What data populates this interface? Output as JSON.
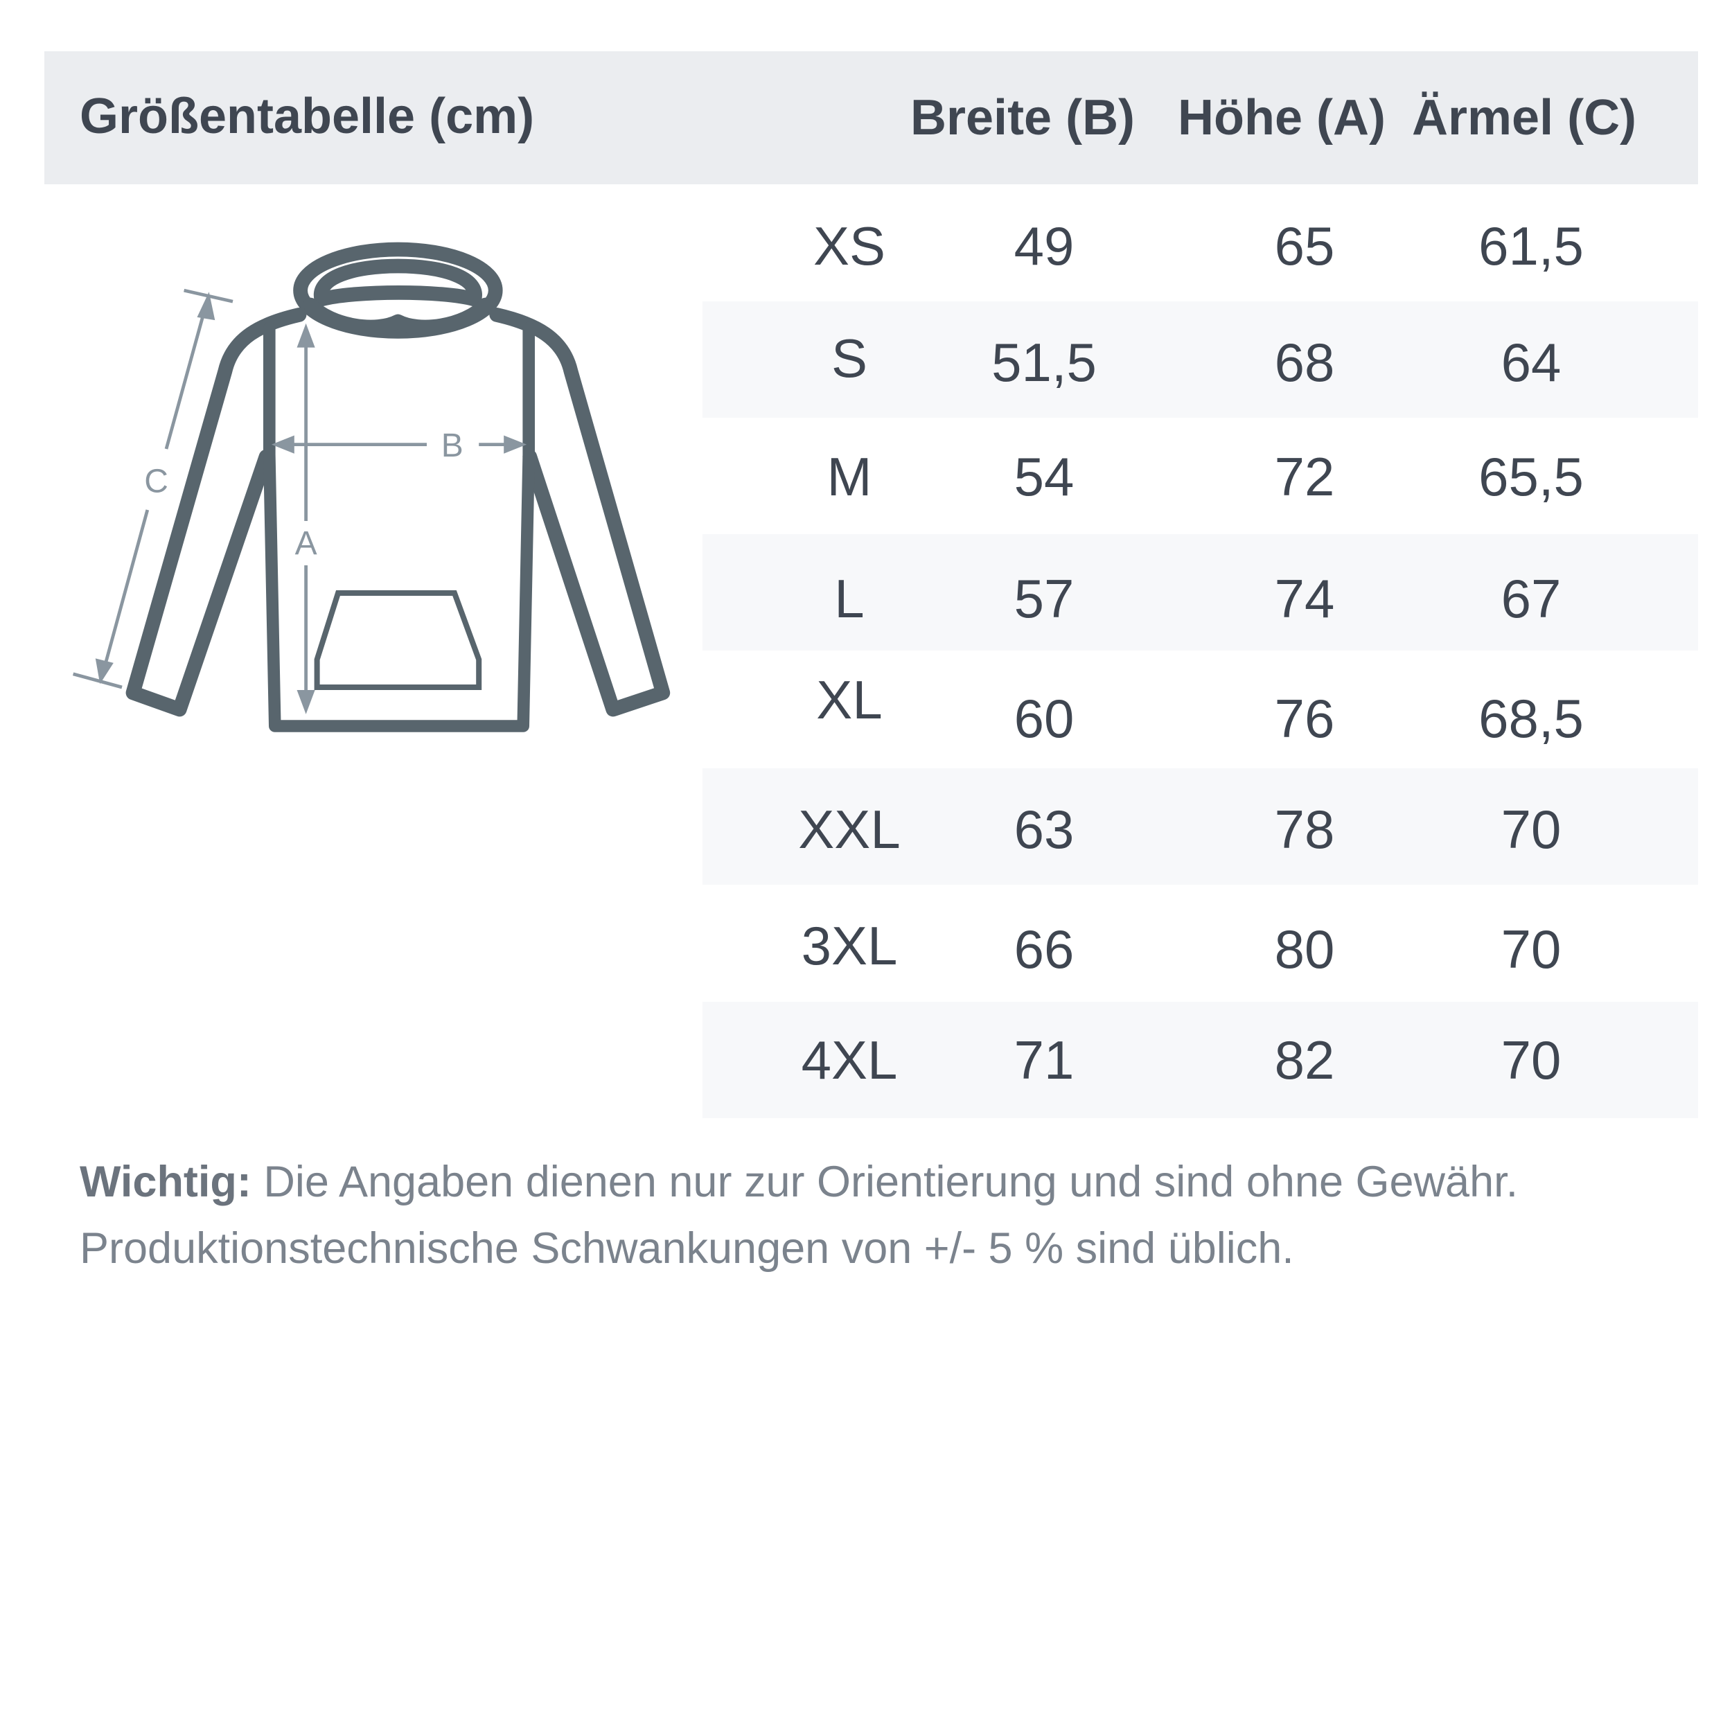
{
  "header": {
    "title": "Größentabelle (cm)",
    "columns": [
      "Breite (B)",
      "Höhe (A)",
      "Ärmel (C)"
    ]
  },
  "diagram": {
    "labels": {
      "a": "A",
      "b": "B",
      "c": "C"
    },
    "colors": {
      "outline": "#58656d",
      "measure": "#8a96a0"
    }
  },
  "rows": [
    {
      "size": "XS",
      "breite": "49",
      "hoehe": "65",
      "aermel": "61,5"
    },
    {
      "size": "S",
      "breite": "51,5",
      "hoehe": "68",
      "aermel": "64"
    },
    {
      "size": "M",
      "breite": "54",
      "hoehe": "72",
      "aermel": "65,5"
    },
    {
      "size": "L",
      "breite": "57",
      "hoehe": "74",
      "aermel": "67"
    },
    {
      "size": "XL",
      "breite": "60",
      "hoehe": "76",
      "aermel": "68,5"
    },
    {
      "size": "XXL",
      "breite": "63",
      "hoehe": "78",
      "aermel": "70"
    },
    {
      "size": "3XL",
      "breite": "66",
      "hoehe": "80",
      "aermel": "70"
    },
    {
      "size": "4XL",
      "breite": "71",
      "hoehe": "82",
      "aermel": "70"
    }
  ],
  "note": {
    "label": "Wichtig:",
    "line1": " Die Angaben dienen nur zur Orientierung und sind ohne Gewähr.",
    "line2": "Produktionstechnische Schwankungen von +/- 5 % sind üblich."
  }
}
